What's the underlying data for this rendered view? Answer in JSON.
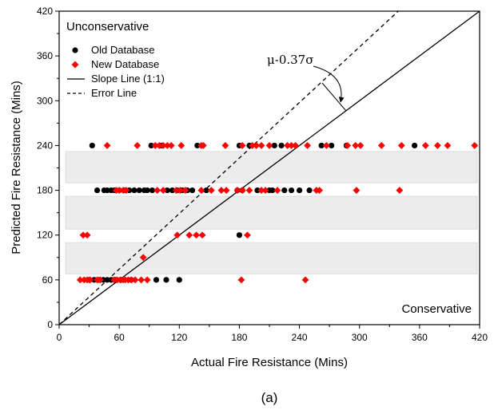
{
  "chart_data": {
    "type": "scatter",
    "xlabel": "Actual Fire Resistance (Mins)",
    "ylabel": "Predicted Fire Resistance (Mins)",
    "xlim": [
      0,
      420
    ],
    "ylim": [
      0,
      420
    ],
    "x_ticks": [
      0,
      60,
      120,
      180,
      240,
      300,
      360,
      420
    ],
    "y_ticks": [
      0,
      60,
      120,
      180,
      240,
      300,
      360,
      420
    ],
    "grid": false,
    "legend_position": "top-left",
    "region_labels": {
      "upper": "Unconservative",
      "lower": "Conservative"
    },
    "annotation": "μ-0.37σ",
    "caption": "(a)",
    "bands": [
      {
        "y_from": 190,
        "y_to": 232
      },
      {
        "y_from": 128,
        "y_to": 172
      },
      {
        "y_from": 68,
        "y_to": 110
      }
    ],
    "lines": [
      {
        "name": "Slope Line (1:1)",
        "style": "solid",
        "slope": 1.0
      },
      {
        "name": "Error Line",
        "style": "dashed",
        "slope": 1.24
      }
    ],
    "series": [
      {
        "name": "Old Database",
        "marker": "circle",
        "color": "#000000",
        "points": [
          [
            33,
            240
          ],
          [
            92,
            240
          ],
          [
            102,
            240
          ],
          [
            138,
            240
          ],
          [
            180,
            240
          ],
          [
            190,
            240
          ],
          [
            215,
            240
          ],
          [
            222,
            240
          ],
          [
            262,
            240
          ],
          [
            272,
            240
          ],
          [
            287,
            240
          ],
          [
            355,
            240
          ],
          [
            38,
            180
          ],
          [
            45,
            180
          ],
          [
            48,
            180
          ],
          [
            52,
            180
          ],
          [
            55,
            180
          ],
          [
            60,
            180
          ],
          [
            65,
            180
          ],
          [
            70,
            180
          ],
          [
            75,
            180
          ],
          [
            80,
            180
          ],
          [
            85,
            180
          ],
          [
            88,
            180
          ],
          [
            93,
            180
          ],
          [
            108,
            180
          ],
          [
            113,
            180
          ],
          [
            118,
            180
          ],
          [
            123,
            180
          ],
          [
            128,
            180
          ],
          [
            133,
            180
          ],
          [
            147,
            180
          ],
          [
            178,
            180
          ],
          [
            183,
            180
          ],
          [
            198,
            180
          ],
          [
            210,
            180
          ],
          [
            213,
            180
          ],
          [
            225,
            180
          ],
          [
            232,
            180
          ],
          [
            240,
            180
          ],
          [
            250,
            180
          ],
          [
            180,
            120
          ],
          [
            30,
            60
          ],
          [
            35,
            60
          ],
          [
            40,
            60
          ],
          [
            44,
            60
          ],
          [
            48,
            60
          ],
          [
            52,
            60
          ],
          [
            56,
            60
          ],
          [
            62,
            60
          ],
          [
            72,
            60
          ],
          [
            97,
            60
          ],
          [
            107,
            60
          ],
          [
            120,
            60
          ]
        ]
      },
      {
        "name": "New Database",
        "marker": "diamond",
        "color": "#ff0000",
        "points": [
          [
            48,
            240
          ],
          [
            78,
            240
          ],
          [
            96,
            240
          ],
          [
            100,
            240
          ],
          [
            104,
            240
          ],
          [
            108,
            240
          ],
          [
            112,
            240
          ],
          [
            122,
            240
          ],
          [
            142,
            240
          ],
          [
            144,
            240
          ],
          [
            166,
            240
          ],
          [
            183,
            240
          ],
          [
            193,
            240
          ],
          [
            197,
            240
          ],
          [
            202,
            240
          ],
          [
            210,
            240
          ],
          [
            228,
            240
          ],
          [
            232,
            240
          ],
          [
            236,
            240
          ],
          [
            248,
            240
          ],
          [
            267,
            240
          ],
          [
            288,
            240
          ],
          [
            296,
            240
          ],
          [
            301,
            240
          ],
          [
            322,
            240
          ],
          [
            342,
            240
          ],
          [
            366,
            240
          ],
          [
            378,
            240
          ],
          [
            388,
            240
          ],
          [
            415,
            240
          ],
          [
            57,
            180
          ],
          [
            60,
            180
          ],
          [
            64,
            180
          ],
          [
            67,
            180
          ],
          [
            98,
            180
          ],
          [
            104,
            180
          ],
          [
            117,
            180
          ],
          [
            121,
            180
          ],
          [
            126,
            180
          ],
          [
            142,
            180
          ],
          [
            152,
            180
          ],
          [
            162,
            180
          ],
          [
            167,
            180
          ],
          [
            178,
            180
          ],
          [
            183,
            180
          ],
          [
            190,
            180
          ],
          [
            202,
            180
          ],
          [
            206,
            180
          ],
          [
            218,
            180
          ],
          [
            257,
            180
          ],
          [
            260,
            180
          ],
          [
            297,
            180
          ],
          [
            340,
            180
          ],
          [
            24,
            120
          ],
          [
            28,
            120
          ],
          [
            118,
            120
          ],
          [
            130,
            120
          ],
          [
            137,
            120
          ],
          [
            143,
            120
          ],
          [
            188,
            120
          ],
          [
            84,
            90
          ],
          [
            21,
            60
          ],
          [
            25,
            60
          ],
          [
            28,
            60
          ],
          [
            31,
            60
          ],
          [
            38,
            60
          ],
          [
            41,
            60
          ],
          [
            55,
            60
          ],
          [
            58,
            60
          ],
          [
            61,
            60
          ],
          [
            64,
            60
          ],
          [
            66,
            60
          ],
          [
            69,
            60
          ],
          [
            72,
            60
          ],
          [
            76,
            60
          ],
          [
            82,
            60
          ],
          [
            88,
            60
          ],
          [
            182,
            60
          ],
          [
            246,
            60
          ]
        ]
      }
    ]
  }
}
